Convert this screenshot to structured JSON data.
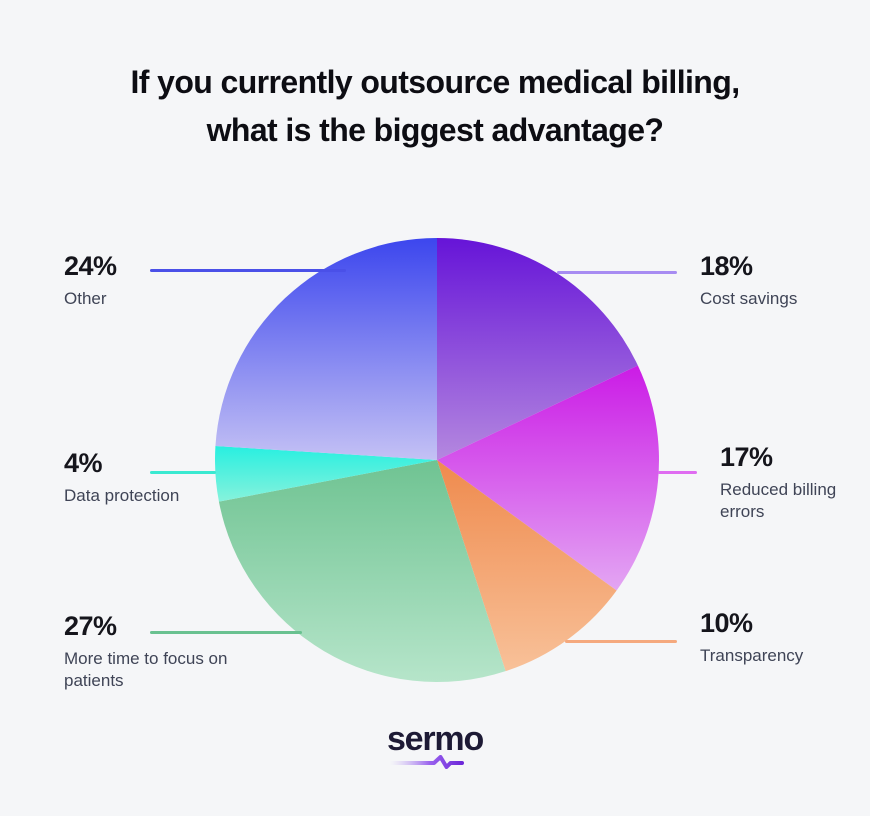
{
  "colors": {
    "background": "#f5f6f8",
    "title_text": "#0d0d13",
    "pct_text": "#15151c",
    "label_text": "#3f4456"
  },
  "title": {
    "line1": "If you currently outsource medical billing,",
    "line2": "what is the biggest advantage?"
  },
  "chart_data": {
    "type": "pie",
    "title": "If you currently outsource medical billing, what is the biggest advantage?",
    "start_angle_deg": 0,
    "direction": "clockwise",
    "legend_position": "calloutLabels",
    "slices": [
      {
        "id": "cost-savings",
        "label": "Cost savings",
        "value": 18,
        "pct_label": "18%",
        "color_top": "#6614d8",
        "color_bottom": "#b488df",
        "line_color": "#a78cf2"
      },
      {
        "id": "reduced-billing-errors",
        "label": "Reduced billing errors",
        "value": 17,
        "pct_label": "17%",
        "color_top": "#cb1be6",
        "color_bottom": "#e3a6f3",
        "line_color": "#df6cf1"
      },
      {
        "id": "transparency",
        "label": "Transparency",
        "value": 10,
        "pct_label": "10%",
        "color_top": "#ef8a4d",
        "color_bottom": "#f8c199",
        "line_color": "#f5a97e"
      },
      {
        "id": "more-time",
        "label": "More time to focus on patients",
        "value": 27,
        "pct_label": "27%",
        "color_top": "#6fc392",
        "color_bottom": "#b6e5ca",
        "line_color": "#69c190"
      },
      {
        "id": "data-protection",
        "label": "Data protection",
        "value": 4,
        "pct_label": "4%",
        "color_top": "#28efe0",
        "color_bottom": "#86f2dc",
        "line_color": "#3ae9d1"
      },
      {
        "id": "other",
        "label": "Other",
        "value": 24,
        "pct_label": "24%",
        "color_top": "#3c46ee",
        "color_bottom": "#c4c1f4",
        "line_color": "#4a50e8"
      }
    ]
  },
  "logo": {
    "text": "sermo",
    "text_color": "#1d1a35",
    "underline_start": "#c7b3f2",
    "underline_mid": "#9a63ee",
    "underline_end": "#6d28d9"
  }
}
